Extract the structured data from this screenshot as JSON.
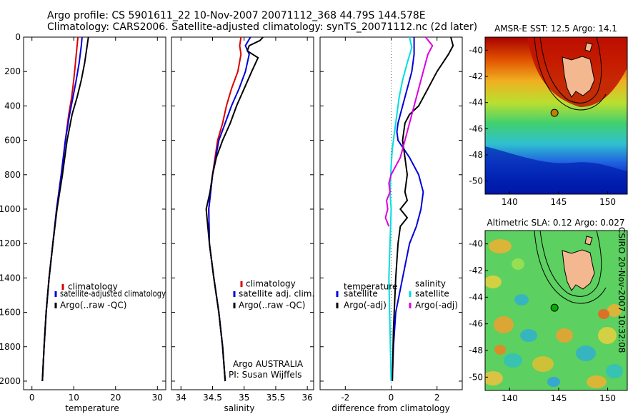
{
  "header": {
    "title_line1": "Argo profile: CS 5901611_22 10-Nov-2007 20071112_368 44.79S 144.578E",
    "title_line2": "Climatology: CARS2006. Satellite-adjusted climatology: synTS_20071112.nc (2d later)"
  },
  "stamp": "CSIRO 20-Nov-2007 10:32:08",
  "colors": {
    "climatology": "#dd0000",
    "satellite": "#0000dd",
    "argo": "#000000",
    "cyan": "#00dddd",
    "magenta": "#dd00dd"
  },
  "chart_data": [
    {
      "type": "line",
      "xlabel": "temperature",
      "xlim": [
        -2,
        32
      ],
      "ylim": [
        0,
        2050
      ],
      "y_inverted": true,
      "xticks": [
        0,
        10,
        20,
        30
      ],
      "yticks": [
        0,
        200,
        400,
        600,
        800,
        1000,
        1200,
        1400,
        1600,
        1800,
        2000
      ],
      "legend": {
        "placement": "lower-right",
        "entries": [
          "climatology",
          "satellite-adjusted climatology",
          "Argo(..raw -QC)"
        ]
      },
      "series": [
        {
          "name": "climatology",
          "color_key": "climatology",
          "x": [
            11,
            10.8,
            10.4,
            10,
            9.5,
            8.8,
            8,
            7,
            5.9,
            5,
            4.1,
            3.4,
            2.9,
            2.5
          ],
          "y": [
            0,
            50,
            150,
            250,
            350,
            450,
            600,
            800,
            1000,
            1200,
            1400,
            1600,
            1800,
            2000
          ]
        },
        {
          "name": "satellite-adjusted climatology",
          "color_key": "satellite",
          "x": [
            12,
            11.8,
            11.3,
            10.6,
            9.8,
            9,
            8,
            7,
            5.9,
            5,
            4.1,
            3.4,
            2.9,
            2.5
          ],
          "y": [
            0,
            50,
            150,
            250,
            350,
            450,
            600,
            800,
            1000,
            1200,
            1400,
            1600,
            1800,
            2000
          ]
        },
        {
          "name": "Argo(..raw -QC)",
          "color_key": "argo",
          "x": [
            13.5,
            13.2,
            12.6,
            11.8,
            10.8,
            9.6,
            8.4,
            7.3,
            6,
            5,
            4.1,
            3.4,
            2.9,
            2.5
          ],
          "y": [
            0,
            50,
            150,
            250,
            350,
            450,
            600,
            800,
            1000,
            1200,
            1400,
            1600,
            1800,
            2000
          ]
        }
      ]
    },
    {
      "type": "line",
      "xlabel": "salinity",
      "xlim": [
        33.85,
        36.1
      ],
      "ylim": [
        0,
        2050
      ],
      "y_inverted": true,
      "xticks": [
        34,
        34.5,
        35,
        35.5,
        36
      ],
      "legend": {
        "placement": "lower-right",
        "entries": [
          "climatology",
          "satellite adj. clim.",
          "Argo(..raw -QC)"
        ]
      },
      "annotations": [
        "Argo AUSTRALIA",
        "PI: Susan Wijffels"
      ],
      "series": [
        {
          "name": "climatology",
          "color_key": "climatology",
          "x": [
            34.95,
            34.93,
            34.95,
            34.9,
            34.8,
            34.72,
            34.66,
            34.58,
            34.5,
            34.44,
            34.45,
            34.52,
            34.6,
            34.66,
            34.7
          ],
          "y": [
            0,
            50,
            100,
            200,
            300,
            400,
            500,
            600,
            800,
            1000,
            1200,
            1400,
            1600,
            1800,
            2000
          ]
        },
        {
          "name": "satellite adj. clim.",
          "color_key": "satellite",
          "x": [
            35.1,
            35.02,
            35.08,
            35.02,
            34.92,
            34.8,
            34.7,
            34.6,
            34.5,
            34.44,
            34.45,
            34.52,
            34.6,
            34.66,
            34.7
          ],
          "y": [
            0,
            50,
            100,
            200,
            300,
            400,
            500,
            600,
            800,
            1000,
            1200,
            1400,
            1600,
            1800,
            2000
          ]
        },
        {
          "name": "Argo(..raw -QC)",
          "color_key": "argo",
          "x": [
            35.3,
            35.25,
            35.08,
            35.05,
            35.22,
            35.12,
            35,
            34.88,
            34.78,
            34.66,
            34.56,
            34.5,
            34.46,
            34.4,
            34.45,
            34.52,
            34.6,
            34.66,
            34.7
          ],
          "y": [
            0,
            20,
            50,
            80,
            120,
            200,
            300,
            400,
            500,
            600,
            700,
            800,
            900,
            1000,
            1200,
            1400,
            1600,
            1800,
            2000
          ]
        }
      ]
    },
    {
      "type": "line",
      "xlabel": "difference from climatology",
      "xlim": [
        -3.1,
        3.1
      ],
      "ylim": [
        0,
        2050
      ],
      "y_inverted": true,
      "xticks": [
        -2,
        0,
        2
      ],
      "zero_line": "dotted",
      "legend": {
        "placement": "lower-center",
        "columns": [
          {
            "heading": "temperature",
            "entries": [
              "satellite",
              "Argo(-adj)"
            ],
            "color_keys": [
              "satellite",
              "argo"
            ]
          },
          {
            "heading": "salinity",
            "entries": [
              "satellite",
              "Argo(-adj)"
            ],
            "color_keys": [
              "cyan",
              "magenta"
            ]
          }
        ]
      },
      "series": [
        {
          "name": "temperature satellite",
          "color_key": "satellite",
          "x": [
            1,
            1,
            0.9,
            0.7,
            0.5,
            0.3,
            0.25,
            0.3,
            0.8,
            1.2,
            1.4,
            1.3,
            1.1,
            0.8,
            0.5,
            0.2,
            0.1,
            0.05
          ],
          "y": [
            0,
            100,
            200,
            300,
            400,
            500,
            550,
            600,
            700,
            800,
            900,
            1000,
            1100,
            1200,
            1400,
            1600,
            1800,
            2000
          ]
        },
        {
          "name": "temperature Argo(-adj)",
          "color_key": "argo",
          "x": [
            2.6,
            2.7,
            2.5,
            2,
            1.6,
            1.2,
            0.8,
            0.6,
            0.5,
            0.6,
            0.7,
            0.6,
            0.7,
            0.4,
            0.7,
            0.4,
            0.3,
            0.2,
            0.1,
            0.05
          ],
          "y": [
            0,
            50,
            100,
            200,
            300,
            400,
            450,
            500,
            600,
            700,
            800,
            900,
            950,
            1000,
            1050,
            1100,
            1200,
            1400,
            1700,
            2000
          ]
        },
        {
          "name": "salinity satellite",
          "color_key": "cyan",
          "x": [
            0.8,
            0.9,
            0.7,
            0.5,
            0.35,
            0.25,
            0.15,
            0.05,
            0,
            -0.05,
            0,
            -0.05,
            -0.1,
            -0.05,
            0
          ],
          "y": [
            0,
            60,
            150,
            250,
            350,
            450,
            550,
            650,
            750,
            900,
            1000,
            1200,
            1400,
            1700,
            2000
          ]
        },
        {
          "name": "salinity Argo(-adj)",
          "color_key": "magenta",
          "x": [
            1.5,
            1.8,
            1.6,
            1.4,
            1.2,
            1,
            0.8,
            0.6,
            0.4,
            0.2,
            0,
            -0.1,
            -0.05,
            -0.2,
            -0.15,
            -0.25,
            -0.1
          ],
          "y": [
            0,
            50,
            100,
            200,
            300,
            400,
            500,
            600,
            700,
            750,
            800,
            850,
            900,
            950,
            1000,
            1050,
            1100
          ]
        }
      ]
    }
  ],
  "maps": [
    {
      "title": "AMSR-E SST: 12.5 Argo: 14.1",
      "xticks": [
        140,
        145,
        150
      ],
      "yticks": [
        -40,
        -42,
        -44,
        -46,
        -48,
        -50
      ],
      "lon_range": [
        137.5,
        152
      ],
      "lat_range": [
        -51,
        -39
      ],
      "float_lon": 144.578,
      "float_lat": -44.79,
      "colormap": "jet",
      "marker_color": "#c08000"
    },
    {
      "title": "Altimetric SLA: 0.12 Argo: 0.027",
      "xticks": [
        140,
        145,
        150
      ],
      "yticks": [
        -40,
        -42,
        -44,
        -46,
        -48,
        -50
      ],
      "lon_range": [
        137.5,
        152
      ],
      "lat_range": [
        -51,
        -39
      ],
      "float_lon": 144.578,
      "float_lat": -44.79,
      "colormap": "jet",
      "marker_color": "#00b000"
    }
  ]
}
